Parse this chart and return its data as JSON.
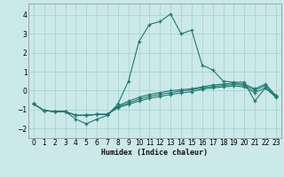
{
  "xlabel": "Humidex (Indice chaleur)",
  "xlim": [
    -0.5,
    23.5
  ],
  "ylim": [
    -2.5,
    4.6
  ],
  "yticks": [
    -2,
    -1,
    0,
    1,
    2,
    3,
    4
  ],
  "xticks": [
    0,
    1,
    2,
    3,
    4,
    5,
    6,
    7,
    8,
    9,
    10,
    11,
    12,
    13,
    14,
    15,
    16,
    17,
    18,
    19,
    20,
    21,
    22,
    23
  ],
  "bg_color": "#cce9e9",
  "grid_color": "#aad4d4",
  "line_color": "#1e7a70",
  "line1_x": [
    0,
    1,
    2,
    3,
    4,
    5,
    6,
    7,
    8,
    9,
    10,
    11,
    12,
    13,
    14,
    15,
    16,
    17,
    18,
    19,
    20,
    21,
    22,
    23
  ],
  "line1_y": [
    -0.7,
    -1.05,
    -1.1,
    -1.1,
    -1.5,
    -1.75,
    -1.5,
    -1.3,
    -0.7,
    0.5,
    2.6,
    3.5,
    3.65,
    4.05,
    3.0,
    3.2,
    1.35,
    1.1,
    0.5,
    0.45,
    0.45,
    -0.55,
    0.15,
    -0.35
  ],
  "line2_x": [
    0,
    1,
    2,
    3,
    4,
    5,
    6,
    7,
    8,
    9,
    10,
    11,
    12,
    13,
    14,
    15,
    16,
    17,
    18,
    19,
    20,
    21,
    22,
    23
  ],
  "line2_y": [
    -0.7,
    -1.05,
    -1.1,
    -1.1,
    -1.3,
    -1.3,
    -1.25,
    -1.25,
    -0.8,
    -0.55,
    -0.35,
    -0.2,
    -0.1,
    0.0,
    0.05,
    0.1,
    0.2,
    0.3,
    0.35,
    0.4,
    0.35,
    0.1,
    0.35,
    -0.25
  ],
  "line3_x": [
    0,
    1,
    2,
    3,
    4,
    5,
    6,
    7,
    8,
    9,
    10,
    11,
    12,
    13,
    14,
    15,
    16,
    17,
    18,
    19,
    20,
    21,
    22,
    23
  ],
  "line3_y": [
    -0.7,
    -1.05,
    -1.1,
    -1.1,
    -1.3,
    -1.3,
    -1.25,
    -1.25,
    -0.85,
    -0.65,
    -0.45,
    -0.3,
    -0.2,
    -0.1,
    -0.02,
    0.05,
    0.15,
    0.22,
    0.28,
    0.33,
    0.28,
    0.02,
    0.27,
    -0.28
  ],
  "line4_x": [
    0,
    1,
    2,
    3,
    4,
    5,
    6,
    7,
    8,
    9,
    10,
    11,
    12,
    13,
    14,
    15,
    16,
    17,
    18,
    19,
    20,
    21,
    22,
    23
  ],
  "line4_y": [
    -0.7,
    -1.05,
    -1.1,
    -1.1,
    -1.3,
    -1.3,
    -1.25,
    -1.25,
    -0.9,
    -0.72,
    -0.55,
    -0.4,
    -0.3,
    -0.2,
    -0.12,
    -0.05,
    0.08,
    0.15,
    0.2,
    0.25,
    0.2,
    -0.1,
    0.15,
    -0.32
  ]
}
